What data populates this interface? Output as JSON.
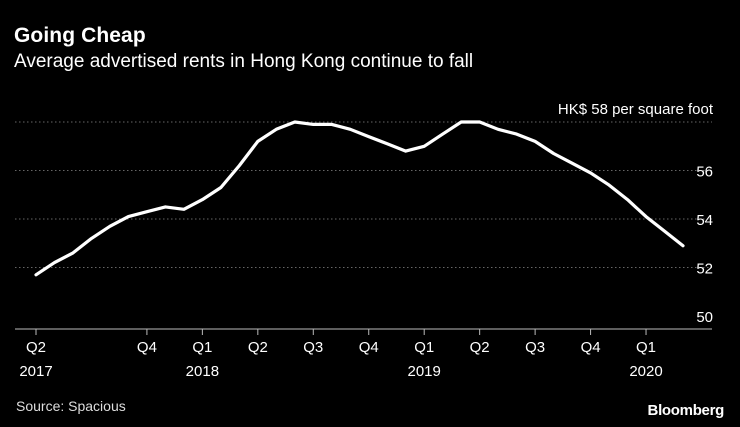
{
  "header": {
    "title": "Going Cheap",
    "subtitle": "Average advertised rents in Hong Kong continue to fall"
  },
  "footer": {
    "source": "Source: Spacious",
    "brand": "Bloomberg"
  },
  "colors": {
    "background": "#000000",
    "line": "#ffffff",
    "grid": "#666666",
    "text": "#ffffff"
  },
  "chart_data": {
    "type": "line",
    "title": "Going Cheap",
    "subtitle": "Average advertised rents in Hong Kong continue to fall",
    "unit_label": "HK$ 58 per square foot",
    "ylabel": "HK$ per square foot",
    "xlabel": "",
    "ylim": [
      50,
      58
    ],
    "yticks": [
      50,
      52,
      54,
      56,
      58
    ],
    "ytick_labels": [
      "50",
      "52",
      "54",
      "56",
      ""
    ],
    "grid": true,
    "x_start": "2017-04",
    "x_end": "2020-04",
    "x_ticks": [
      {
        "label": "Q2",
        "year": "2017",
        "month_index": 0
      },
      {
        "label": "Q4",
        "year": "",
        "month_index": 6
      },
      {
        "label": "Q1",
        "year": "2018",
        "month_index": 9
      },
      {
        "label": "Q2",
        "year": "",
        "month_index": 12
      },
      {
        "label": "Q3",
        "year": "",
        "month_index": 15
      },
      {
        "label": "Q4",
        "year": "",
        "month_index": 18
      },
      {
        "label": "Q1",
        "year": "2019",
        "month_index": 21
      },
      {
        "label": "Q2",
        "year": "",
        "month_index": 24
      },
      {
        "label": "Q3",
        "year": "",
        "month_index": 27
      },
      {
        "label": "Q4",
        "year": "",
        "month_index": 30
      },
      {
        "label": "Q1",
        "year": "2020",
        "month_index": 33
      }
    ],
    "series": [
      {
        "name": "Average advertised rent",
        "month_index": [
          0,
          1,
          2,
          3,
          4,
          5,
          6,
          7,
          8,
          9,
          10,
          11,
          12,
          13,
          14,
          15,
          16,
          17,
          18,
          19,
          20,
          21,
          22,
          23,
          24,
          25,
          26,
          27,
          28,
          29,
          30,
          31,
          32,
          33,
          34,
          35
        ],
        "values": [
          51.7,
          52.2,
          52.6,
          53.2,
          53.7,
          54.1,
          54.3,
          54.5,
          54.4,
          54.8,
          55.3,
          56.2,
          57.2,
          57.7,
          58.0,
          57.9,
          57.9,
          57.7,
          57.4,
          57.1,
          56.8,
          57.0,
          57.5,
          58.0,
          58.0,
          57.7,
          57.5,
          57.2,
          56.7,
          56.3,
          55.9,
          55.4,
          54.8,
          54.1,
          53.5,
          52.9
        ]
      }
    ]
  }
}
